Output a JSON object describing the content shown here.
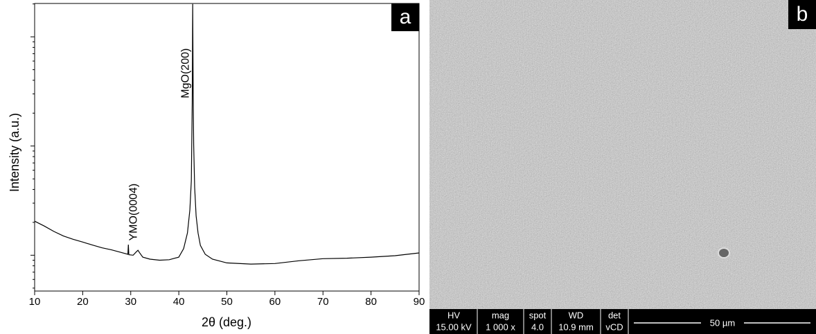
{
  "chart_data": {
    "type": "line",
    "panel_label": "a",
    "x_label": "2θ (deg.)",
    "y_label": "Intensity (a.u.)",
    "x": [
      10,
      12,
      14,
      16,
      18,
      20,
      22,
      24,
      26,
      28,
      29.4,
      29.5,
      29.6,
      30.5,
      31.2,
      31.5,
      31.8,
      32.5,
      34,
      36,
      38,
      40,
      41,
      41.8,
      42.3,
      42.6,
      42.8,
      42.9,
      43.0,
      43.1,
      43.3,
      43.6,
      44,
      44.5,
      45.5,
      47,
      50,
      55,
      60,
      65,
      70,
      75,
      80,
      85,
      90
    ],
    "values": [
      205,
      185,
      165,
      150,
      140,
      132,
      124,
      117,
      112,
      106,
      102,
      125,
      101,
      100,
      108,
      111,
      106,
      96,
      92,
      90,
      91,
      96,
      115,
      160,
      260,
      480,
      2470,
      20000,
      3000,
      1030,
      420,
      230,
      160,
      123,
      102,
      92,
      85,
      83,
      84,
      89,
      93,
      94,
      96,
      99,
      105
    ],
    "color": "#000000",
    "xlim": [
      10,
      90
    ],
    "xticks": [
      10,
      20,
      30,
      40,
      50,
      60,
      70,
      80,
      90
    ],
    "ylim": [
      47,
      20200
    ],
    "log_scale": true,
    "yticks": [
      100,
      1000,
      10000
    ],
    "yminor_ticks": [
      50,
      60,
      70,
      80,
      90,
      200,
      300,
      400,
      500,
      600,
      700,
      800,
      900,
      2000,
      3000,
      4000,
      5000,
      6000,
      7000,
      8000,
      9000,
      20000
    ],
    "annotations": [
      {
        "text": "YMO(0004)",
        "x": 31.5,
        "y": 111
      },
      {
        "text": "MgO(200)",
        "x": 42.9,
        "y": 20000
      }
    ]
  },
  "sem_image": {
    "panel_label": "b",
    "info_bar": {
      "headers": [
        "HV",
        "mag",
        "spot",
        "WD",
        "det"
      ],
      "values": [
        "15.00 kV",
        "1 000 x",
        "4.0",
        "10.9 mm",
        "vCD"
      ],
      "scale_bar": "50 µm"
    }
  }
}
